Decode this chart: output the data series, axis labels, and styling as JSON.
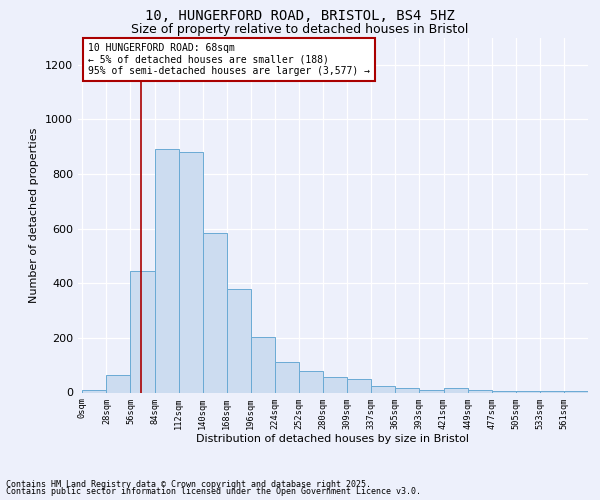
{
  "title1": "10, HUNGERFORD ROAD, BRISTOL, BS4 5HZ",
  "title2": "Size of property relative to detached houses in Bristol",
  "xlabel": "Distribution of detached houses by size in Bristol",
  "ylabel": "Number of detached properties",
  "bar_labels": [
    "0sqm",
    "28sqm",
    "56sqm",
    "84sqm",
    "112sqm",
    "140sqm",
    "168sqm",
    "196sqm",
    "224sqm",
    "252sqm",
    "280sqm",
    "309sqm",
    "337sqm",
    "365sqm",
    "393sqm",
    "421sqm",
    "449sqm",
    "477sqm",
    "505sqm",
    "533sqm",
    "561sqm"
  ],
  "bar_values": [
    10,
    65,
    445,
    890,
    880,
    585,
    380,
    205,
    110,
    80,
    55,
    48,
    22,
    15,
    10,
    15,
    10,
    5,
    5,
    5,
    5
  ],
  "bar_color": "#ccdcf0",
  "bar_edge_color": "#6aaad4",
  "ylim": [
    0,
    1300
  ],
  "yticks": [
    0,
    200,
    400,
    600,
    800,
    1000,
    1200
  ],
  "vline_x": 68,
  "vline_color": "#aa0000",
  "annotation_text": "10 HUNGERFORD ROAD: 68sqm\n← 5% of detached houses are smaller (188)\n95% of semi-detached houses are larger (3,577) →",
  "annotation_box_color": "#ffffff",
  "annotation_box_edge": "#aa0000",
  "footer1": "Contains HM Land Registry data © Crown copyright and database right 2025.",
  "footer2": "Contains public sector information licensed under the Open Government Licence v3.0.",
  "bg_color": "#edf0fb",
  "grid_color": "#ffffff",
  "title_fontsize": 10,
  "subtitle_fontsize": 9,
  "footer_fontsize": 6,
  "bin_width": 28
}
